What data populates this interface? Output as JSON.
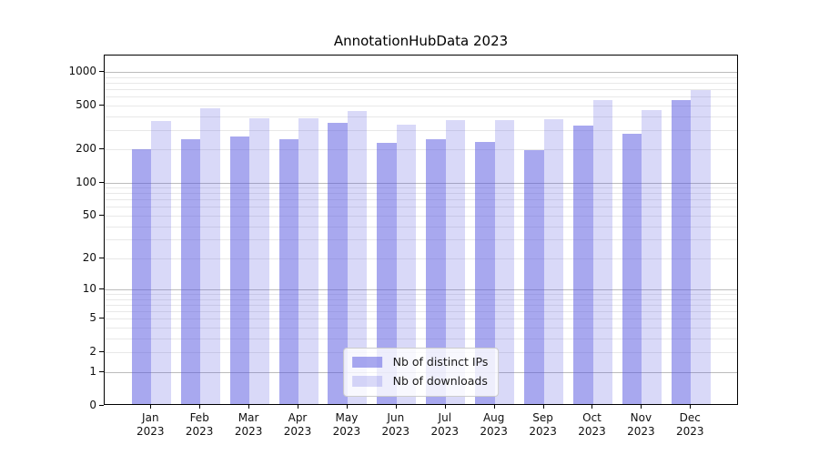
{
  "chart_data": {
    "type": "bar",
    "title": "AnnotationHubData 2023",
    "categories": [
      "Jan 2023",
      "Feb 2023",
      "Mar 2023",
      "Apr 2023",
      "May 2023",
      "Jun 2023",
      "Jul 2023",
      "Aug 2023",
      "Sep 2023",
      "Oct 2023",
      "Nov 2023",
      "Dec 2023"
    ],
    "x_tick_months": [
      "Jan",
      "Feb",
      "Mar",
      "Apr",
      "May",
      "Jun",
      "Jul",
      "Aug",
      "Sep",
      "Oct",
      "Nov",
      "Dec"
    ],
    "x_tick_year": "2023",
    "series": [
      {
        "name": "Nb of distinct IPs",
        "color": "rgba(82,82,224,0.50)",
        "values": [
          196,
          242,
          254,
          242,
          340,
          223,
          240,
          226,
          190,
          317,
          270,
          540
        ]
      },
      {
        "name": "Nb of downloads",
        "color": "rgba(82,82,224,0.22)",
        "values": [
          348,
          461,
          368,
          369,
          429,
          324,
          357,
          360,
          366,
          545,
          444,
          667
        ]
      }
    ],
    "yscale": "log1p",
    "ylim": [
      0,
      1400
    ],
    "yticks": [
      0,
      1,
      2,
      5,
      10,
      20,
      50,
      100,
      200,
      500,
      1000
    ],
    "major_gridlines": [
      1,
      10,
      100,
      1000
    ],
    "grid": true,
    "legend_position": "lower center"
  },
  "colors": {
    "major_grid": "#bcbcbc",
    "minor_grid": "#e8e8e8",
    "spine": "#000000",
    "text": "#111111"
  }
}
